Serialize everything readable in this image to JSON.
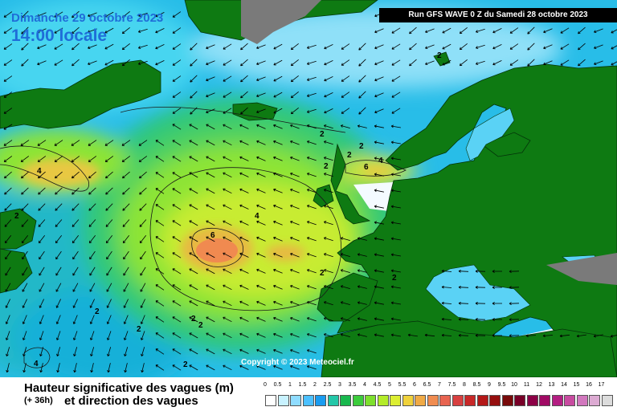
{
  "header": {
    "date": "Dimanche 29 octobre 2023",
    "time": "14:00 locale",
    "run": "Run GFS WAVE 0 Z du Samedi 28 octobre 2023"
  },
  "map": {
    "copyright": "Copyright © 2023 Meteociel.fr",
    "contour_labels": [
      "2",
      "2",
      "2",
      "2",
      "2",
      "2",
      "2",
      "2",
      "2",
      "2",
      "2",
      "2",
      "2",
      "4",
      "4",
      "4",
      "4",
      "6",
      "6"
    ],
    "colors": {
      "land": "#0e7a12",
      "mountain": "#7a7a7a",
      "low_wave": "#ffffff"
    }
  },
  "legend": {
    "title_line1": "Hauteur significative des vagues (m)",
    "subtitle": "(+ 36h)",
    "title_line2": "et direction des vagues",
    "ticks": [
      "0",
      "0.5",
      "1",
      "1.5",
      "2",
      "2.5",
      "3",
      "3.5",
      "4",
      "4.5",
      "5",
      "5.5",
      "6",
      "6.5",
      "7",
      "7.5",
      "8",
      "8.5",
      "9",
      "9.5",
      "10",
      "11",
      "12",
      "13",
      "14",
      "15",
      "16",
      "17"
    ],
    "colors": [
      "#ffffff",
      "#c8f2ff",
      "#8fdcff",
      "#4cc0ff",
      "#1a9cf0",
      "#23c7a8",
      "#19b84e",
      "#3ccc3c",
      "#7ee02e",
      "#b4ec2a",
      "#dcee32",
      "#f0d23c",
      "#f0aa46",
      "#f08c50",
      "#e86450",
      "#d84040",
      "#c82828",
      "#b41818",
      "#960f0f",
      "#780a0a",
      "#780028",
      "#8c0046",
      "#a00a64",
      "#b41e82",
      "#c84ba0",
      "#d278be",
      "#dcaad2",
      "#dcdcdc"
    ]
  }
}
